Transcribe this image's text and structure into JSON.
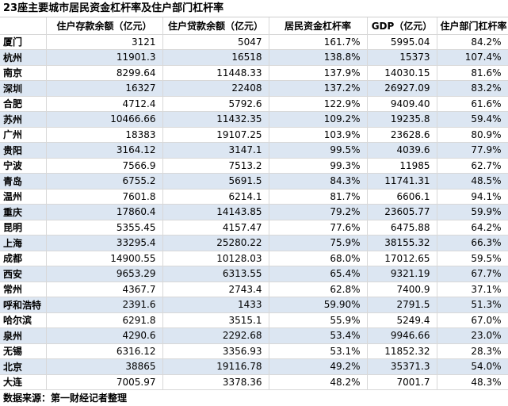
{
  "title": "23座主要城市居民资金杠杆率及住户部门杠杆率",
  "headers": [
    "",
    "住户存款余额（亿元）",
    "住户贷款余额（亿元）",
    "居民资金杠杆率",
    "GDP（亿元）",
    "住户部门杠杆率"
  ],
  "rows": [
    {
      "city": "厦门",
      "deposits": "3121",
      "loans": "5047",
      "funding_leverage": "161.7%",
      "gdp": "5995.04",
      "household_leverage": "84.2%"
    },
    {
      "city": "杭州",
      "deposits": "11901.3",
      "loans": "16518",
      "funding_leverage": "138.8%",
      "gdp": "15373",
      "household_leverage": "107.4%"
    },
    {
      "city": "南京",
      "deposits": "8299.64",
      "loans": "11448.33",
      "funding_leverage": "137.9%",
      "gdp": "14030.15",
      "household_leverage": "81.6%"
    },
    {
      "city": "深圳",
      "deposits": "16327",
      "loans": "22408",
      "funding_leverage": "137.2%",
      "gdp": "26927.09",
      "household_leverage": "83.2%"
    },
    {
      "city": "合肥",
      "deposits": "4712.4",
      "loans": "5792.6",
      "funding_leverage": "122.9%",
      "gdp": "9409.40",
      "household_leverage": "61.6%"
    },
    {
      "city": "苏州",
      "deposits": "10466.66",
      "loans": "11432.35",
      "funding_leverage": "109.2%",
      "gdp": "19235.8",
      "household_leverage": "59.4%"
    },
    {
      "city": "广州",
      "deposits": "18383",
      "loans": "19107.25",
      "funding_leverage": "103.9%",
      "gdp": "23628.6",
      "household_leverage": "80.9%"
    },
    {
      "city": "贵阳",
      "deposits": "3164.12",
      "loans": "3147.1",
      "funding_leverage": "99.5%",
      "gdp": "4039.6",
      "household_leverage": "77.9%"
    },
    {
      "city": "宁波",
      "deposits": "7566.9",
      "loans": "7513.2",
      "funding_leverage": "99.3%",
      "gdp": "11985",
      "household_leverage": "62.7%"
    },
    {
      "city": "青岛",
      "deposits": "6755.2",
      "loans": "5691.5",
      "funding_leverage": "84.3%",
      "gdp": "11741.31",
      "household_leverage": "48.5%"
    },
    {
      "city": "温州",
      "deposits": "7601.8",
      "loans": "6214.1",
      "funding_leverage": "81.7%",
      "gdp": "6606.1",
      "household_leverage": "94.1%"
    },
    {
      "city": "重庆",
      "deposits": "17860.4",
      "loans": "14143.85",
      "funding_leverage": "79.2%",
      "gdp": "23605.77",
      "household_leverage": "59.9%"
    },
    {
      "city": "昆明",
      "deposits": "5355.45",
      "loans": "4157.47",
      "funding_leverage": "77.6%",
      "gdp": "6475.88",
      "household_leverage": "64.2%"
    },
    {
      "city": "上海",
      "deposits": "33295.4",
      "loans": "25280.22",
      "funding_leverage": "75.9%",
      "gdp": "38155.32",
      "household_leverage": "66.3%"
    },
    {
      "city": "成都",
      "deposits": "14900.55",
      "loans": "10128.03",
      "funding_leverage": "68.0%",
      "gdp": "17012.65",
      "household_leverage": "59.5%"
    },
    {
      "city": "西安",
      "deposits": "9653.29",
      "loans": "6313.55",
      "funding_leverage": "65.4%",
      "gdp": "9321.19",
      "household_leverage": "67.7%"
    },
    {
      "city": "常州",
      "deposits": "4367.7",
      "loans": "2743.4",
      "funding_leverage": "62.8%",
      "gdp": "7400.9",
      "household_leverage": "37.1%"
    },
    {
      "city": "呼和浩特",
      "deposits": "2391.6",
      "loans": "1433",
      "funding_leverage": "59.90%",
      "gdp": "2791.5",
      "household_leverage": "51.3%"
    },
    {
      "city": "哈尔滨",
      "deposits": "6291.8",
      "loans": "3515.1",
      "funding_leverage": "55.9%",
      "gdp": "5249.4",
      "household_leverage": "67.0%"
    },
    {
      "city": "泉州",
      "deposits": "4290.6",
      "loans": "2292.68",
      "funding_leverage": "53.4%",
      "gdp": "9946.66",
      "household_leverage": "23.0%"
    },
    {
      "city": "无锡",
      "deposits": "6316.12",
      "loans": "3356.93",
      "funding_leverage": "53.1%",
      "gdp": "11852.32",
      "household_leverage": "28.3%"
    },
    {
      "city": "北京",
      "deposits": "38865",
      "loans": "19116.78",
      "funding_leverage": "49.2%",
      "gdp": "35371.3",
      "household_leverage": "54.0%"
    },
    {
      "city": "大连",
      "deposits": "7005.97",
      "loans": "3378.36",
      "funding_leverage": "48.2%",
      "gdp": "7001.7",
      "household_leverage": "48.3%"
    }
  ],
  "footer": "数据来源：第一财经记者整理",
  "colors": {
    "alt_row": "#dce6f2",
    "grid_line": "#d8d8d8"
  }
}
